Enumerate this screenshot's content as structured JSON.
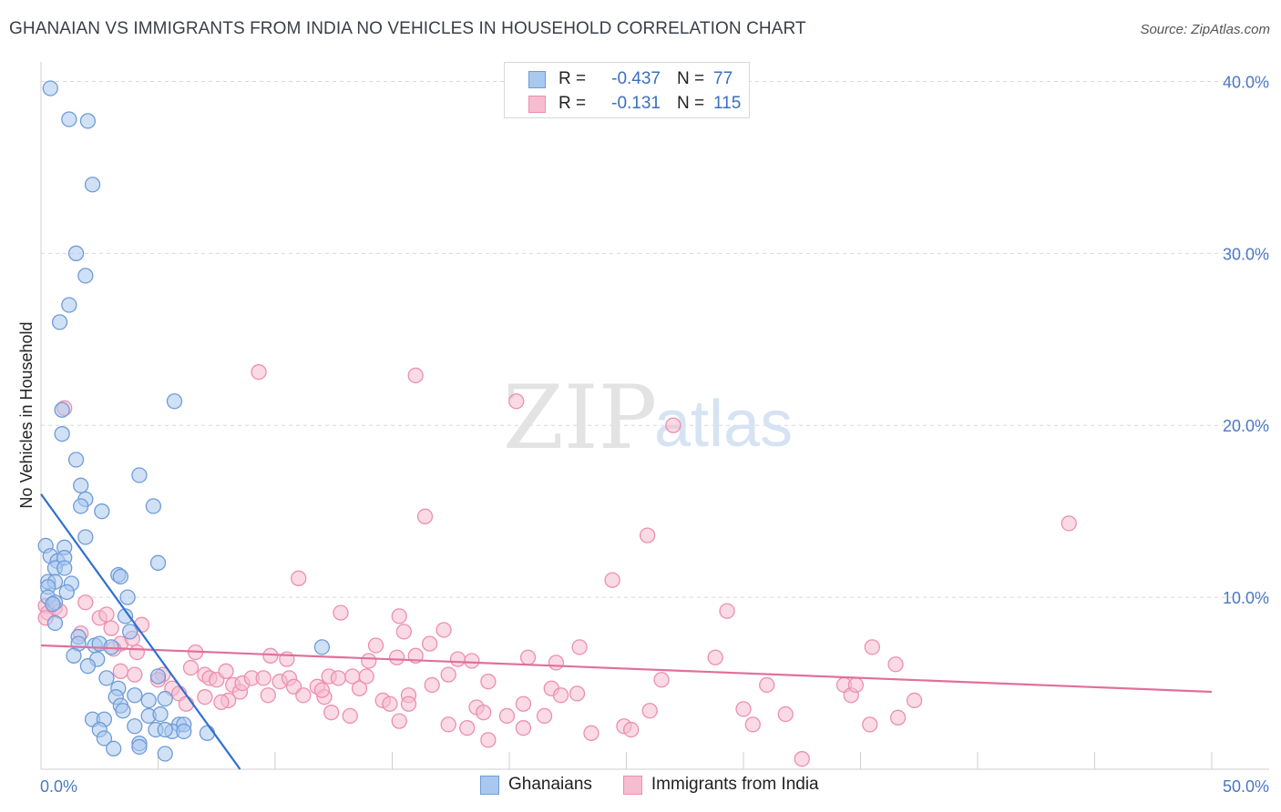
{
  "title": "GHANAIAN VS IMMIGRANTS FROM INDIA NO VEHICLES IN HOUSEHOLD CORRELATION CHART",
  "source": "Source: ZipAtlas.com",
  "watermark": {
    "zip": "ZIP",
    "atlas": "atlas"
  },
  "legend": {
    "rows": [
      {
        "r_label": "R =",
        "r_value": "-0.437",
        "n_label": "N =",
        "n_value": "77"
      },
      {
        "r_label": "R =",
        "r_value": "-0.131",
        "n_label": "N =",
        "n_value": "115"
      }
    ]
  },
  "bottom_legend": {
    "series1": "Ghanaians",
    "series2": "Immigrants from India"
  },
  "colors": {
    "blue_fill": "#a9c8ef",
    "blue_stroke": "#6f9bd8",
    "blue_line": "#2f6fd0",
    "pink_fill": "#f6bcd0",
    "pink_stroke": "#ec8fae",
    "pink_line": "#e0709a",
    "grid": "#d9d9d9",
    "tick_text": "#4a78c4"
  },
  "chart_data": {
    "type": "scatter",
    "title": "GHANAIAN VS IMMIGRANTS FROM INDIA NO VEHICLES IN HOUSEHOLD CORRELATION CHART",
    "xlabel": "",
    "ylabel": "No Vehicles in Household",
    "xlim": [
      0,
      50
    ],
    "ylim": [
      0,
      40.5
    ],
    "x_tick_labels": [
      "0.0%",
      "50.0%"
    ],
    "y_ticks": [
      10,
      20,
      30,
      40
    ],
    "y_tick_labels": [
      "10.0%",
      "20.0%",
      "30.0%",
      "40.0%"
    ],
    "grid": true,
    "series": [
      {
        "name": "Ghanaians",
        "r": -0.437,
        "n": 77,
        "trend": [
          [
            0,
            16.0
          ],
          [
            8.5,
            0
          ]
        ],
        "points": [
          [
            0.4,
            39.6
          ],
          [
            1.2,
            37.8
          ],
          [
            2.0,
            37.7
          ],
          [
            2.2,
            34.0
          ],
          [
            1.5,
            30.0
          ],
          [
            1.9,
            28.7
          ],
          [
            1.2,
            27.0
          ],
          [
            0.8,
            26.0
          ],
          [
            5.7,
            21.4
          ],
          [
            0.9,
            20.9
          ],
          [
            0.9,
            19.5
          ],
          [
            1.5,
            18.0
          ],
          [
            4.2,
            17.1
          ],
          [
            1.7,
            16.5
          ],
          [
            1.9,
            15.7
          ],
          [
            1.7,
            15.3
          ],
          [
            4.8,
            15.3
          ],
          [
            2.6,
            15.0
          ],
          [
            1.9,
            13.5
          ],
          [
            0.2,
            13.0
          ],
          [
            1.0,
            12.9
          ],
          [
            0.4,
            12.4
          ],
          [
            0.7,
            12.1
          ],
          [
            1.0,
            12.3
          ],
          [
            5.0,
            12.0
          ],
          [
            0.6,
            11.7
          ],
          [
            1.0,
            11.7
          ],
          [
            3.3,
            11.3
          ],
          [
            3.4,
            11.2
          ],
          [
            0.3,
            10.9
          ],
          [
            0.6,
            10.9
          ],
          [
            1.3,
            10.8
          ],
          [
            0.3,
            10.6
          ],
          [
            1.1,
            10.3
          ],
          [
            0.3,
            10.0
          ],
          [
            3.7,
            10.0
          ],
          [
            0.6,
            9.7
          ],
          [
            0.5,
            9.6
          ],
          [
            3.6,
            8.9
          ],
          [
            0.6,
            8.5
          ],
          [
            3.8,
            8.0
          ],
          [
            1.6,
            7.7
          ],
          [
            1.6,
            7.3
          ],
          [
            2.3,
            7.2
          ],
          [
            2.5,
            7.3
          ],
          [
            3.0,
            7.1
          ],
          [
            12.0,
            7.1
          ],
          [
            1.4,
            6.6
          ],
          [
            2.4,
            6.4
          ],
          [
            2.0,
            6.0
          ],
          [
            2.8,
            5.3
          ],
          [
            5.0,
            5.4
          ],
          [
            3.3,
            4.7
          ],
          [
            4.0,
            4.3
          ],
          [
            3.2,
            4.2
          ],
          [
            4.6,
            4.0
          ],
          [
            5.3,
            4.1
          ],
          [
            3.4,
            3.7
          ],
          [
            3.5,
            3.4
          ],
          [
            4.6,
            3.1
          ],
          [
            5.1,
            3.2
          ],
          [
            2.2,
            2.9
          ],
          [
            2.7,
            2.9
          ],
          [
            5.9,
            2.6
          ],
          [
            6.1,
            2.6
          ],
          [
            4.0,
            2.5
          ],
          [
            2.5,
            2.3
          ],
          [
            5.6,
            2.2
          ],
          [
            4.9,
            2.3
          ],
          [
            5.3,
            2.3
          ],
          [
            6.1,
            2.2
          ],
          [
            2.7,
            1.8
          ],
          [
            7.1,
            2.1
          ],
          [
            4.2,
            1.5
          ],
          [
            3.1,
            1.2
          ],
          [
            4.2,
            1.3
          ],
          [
            5.3,
            0.9
          ]
        ]
      },
      {
        "name": "Immigrants from India",
        "r": -0.131,
        "n": 115,
        "trend": [
          [
            0,
            7.2
          ],
          [
            50,
            4.5
          ]
        ],
        "points": [
          [
            0.2,
            9.5
          ],
          [
            0.3,
            9.1
          ],
          [
            0.2,
            8.8
          ],
          [
            0.6,
            9.4
          ],
          [
            0.8,
            9.2
          ],
          [
            1.0,
            21.0
          ],
          [
            1.7,
            7.9
          ],
          [
            2.5,
            8.8
          ],
          [
            2.8,
            9.0
          ],
          [
            1.9,
            9.7
          ],
          [
            3.0,
            8.2
          ],
          [
            3.4,
            7.3
          ],
          [
            3.1,
            7.0
          ],
          [
            3.9,
            7.6
          ],
          [
            3.4,
            5.7
          ],
          [
            4.1,
            6.8
          ],
          [
            4.3,
            8.4
          ],
          [
            4.0,
            5.5
          ],
          [
            5.2,
            5.5
          ],
          [
            5.0,
            5.2
          ],
          [
            5.6,
            4.7
          ],
          [
            6.6,
            6.8
          ],
          [
            7.0,
            5.5
          ],
          [
            6.4,
            5.9
          ],
          [
            5.9,
            4.4
          ],
          [
            6.2,
            3.8
          ],
          [
            7.2,
            5.3
          ],
          [
            7.5,
            5.2
          ],
          [
            7.0,
            4.2
          ],
          [
            7.9,
            5.7
          ],
          [
            8.2,
            4.9
          ],
          [
            8.5,
            4.5
          ],
          [
            8.0,
            4.0
          ],
          [
            7.7,
            3.9
          ],
          [
            8.6,
            5.0
          ],
          [
            9.0,
            5.3
          ],
          [
            9.5,
            5.3
          ],
          [
            9.3,
            23.1
          ],
          [
            9.7,
            4.3
          ],
          [
            9.8,
            6.6
          ],
          [
            10.2,
            5.1
          ],
          [
            10.6,
            5.3
          ],
          [
            10.8,
            4.8
          ],
          [
            10.5,
            6.4
          ],
          [
            11.2,
            4.3
          ],
          [
            11.8,
            4.8
          ],
          [
            11.0,
            11.1
          ],
          [
            12.3,
            5.4
          ],
          [
            12.1,
            4.2
          ],
          [
            12.7,
            5.3
          ],
          [
            12.4,
            3.3
          ],
          [
            12.0,
            4.6
          ],
          [
            12.8,
            9.1
          ],
          [
            13.3,
            5.4
          ],
          [
            13.6,
            4.7
          ],
          [
            13.2,
            3.1
          ],
          [
            13.9,
            5.4
          ],
          [
            14.3,
            7.2
          ],
          [
            14.6,
            4.0
          ],
          [
            14.9,
            3.8
          ],
          [
            14.0,
            6.3
          ],
          [
            15.2,
            6.5
          ],
          [
            15.7,
            4.3
          ],
          [
            15.3,
            8.9
          ],
          [
            15.5,
            8.0
          ],
          [
            16.0,
            6.6
          ],
          [
            16.6,
            7.3
          ],
          [
            15.7,
            3.8
          ],
          [
            15.3,
            2.8
          ],
          [
            16.7,
            4.9
          ],
          [
            17.4,
            2.6
          ],
          [
            17.2,
            8.1
          ],
          [
            17.8,
            6.4
          ],
          [
            18.4,
            6.3
          ],
          [
            17.4,
            5.5
          ],
          [
            18.2,
            2.4
          ],
          [
            18.6,
            3.6
          ],
          [
            18.9,
            3.3
          ],
          [
            19.1,
            1.7
          ],
          [
            19.1,
            5.1
          ],
          [
            19.9,
            3.1
          ],
          [
            20.3,
            21.4
          ],
          [
            20.6,
            2.4
          ],
          [
            20.8,
            6.5
          ],
          [
            20.6,
            3.8
          ],
          [
            21.5,
            3.1
          ],
          [
            21.8,
            4.7
          ],
          [
            22.2,
            4.3
          ],
          [
            22.9,
            4.4
          ],
          [
            16.0,
            22.9
          ],
          [
            16.4,
            14.7
          ],
          [
            22.0,
            6.2
          ],
          [
            23.0,
            7.1
          ],
          [
            23.5,
            2.1
          ],
          [
            24.4,
            11.0
          ],
          [
            24.9,
            2.5
          ],
          [
            25.2,
            2.3
          ],
          [
            25.9,
            13.6
          ],
          [
            26.0,
            3.4
          ],
          [
            26.5,
            5.2
          ],
          [
            27.0,
            20.0
          ],
          [
            28.8,
            6.5
          ],
          [
            29.3,
            9.2
          ],
          [
            30.0,
            3.5
          ],
          [
            30.4,
            2.6
          ],
          [
            31.0,
            4.9
          ],
          [
            31.8,
            3.2
          ],
          [
            32.5,
            0.6
          ],
          [
            34.3,
            4.9
          ],
          [
            34.6,
            4.3
          ],
          [
            34.8,
            4.9
          ],
          [
            35.5,
            7.1
          ],
          [
            35.4,
            2.6
          ],
          [
            36.5,
            6.1
          ],
          [
            36.6,
            3.0
          ],
          [
            37.3,
            4.0
          ],
          [
            43.9,
            14.3
          ]
        ]
      }
    ]
  }
}
